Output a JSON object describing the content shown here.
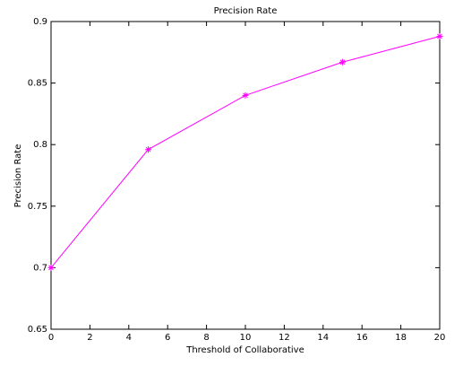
{
  "chart_data": {
    "type": "line",
    "title": "Precision Rate",
    "x_label": "Threshold of Collaborative",
    "y_label": "Precision Rate",
    "x": [
      0,
      5,
      10,
      15,
      20
    ],
    "series": [
      {
        "name": "Precision Rate",
        "color": "#ff00ff",
        "values": [
          0.7,
          0.796,
          0.84,
          0.867,
          0.888
        ]
      }
    ],
    "xlim": [
      0,
      20
    ],
    "xticks": [
      0,
      2,
      4,
      6,
      8,
      10,
      12,
      14,
      16,
      18,
      20
    ],
    "ylim": [
      0.65,
      0.9
    ],
    "yticks": [
      0.65,
      0.7,
      0.75,
      0.8,
      0.85,
      0.9
    ],
    "grid": false
  }
}
